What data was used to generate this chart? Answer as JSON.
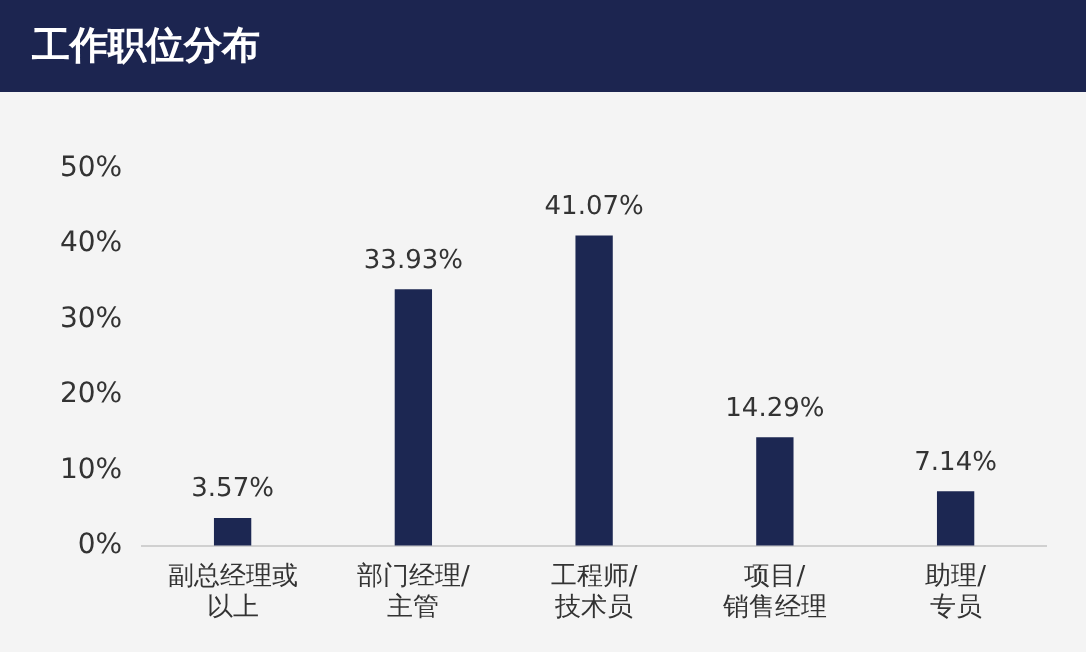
{
  "chart_data": {
    "type": "bar",
    "title": "工作职位分布",
    "categories": [
      "副总经理或以上",
      "部门经理/主管",
      "工程师/技术员",
      "项目/销售经理",
      "助理/专员"
    ],
    "values": [
      3.57,
      33.93,
      41.07,
      14.29,
      7.14
    ],
    "value_labels": [
      "3.57%",
      "33.93%",
      "41.07%",
      "14.29%",
      "7.14%"
    ],
    "color": "#1c2752",
    "ylim": [
      0,
      50
    ],
    "yticks": [
      {
        "value": 0,
        "label": "0%"
      },
      {
        "value": 10,
        "label": "10%"
      },
      {
        "value": 20,
        "label": "20%"
      },
      {
        "value": 30,
        "label": "30%"
      },
      {
        "value": 40,
        "label": "40%"
      },
      {
        "value": 50,
        "label": "50%"
      }
    ],
    "grid": false,
    "legend": false
  }
}
